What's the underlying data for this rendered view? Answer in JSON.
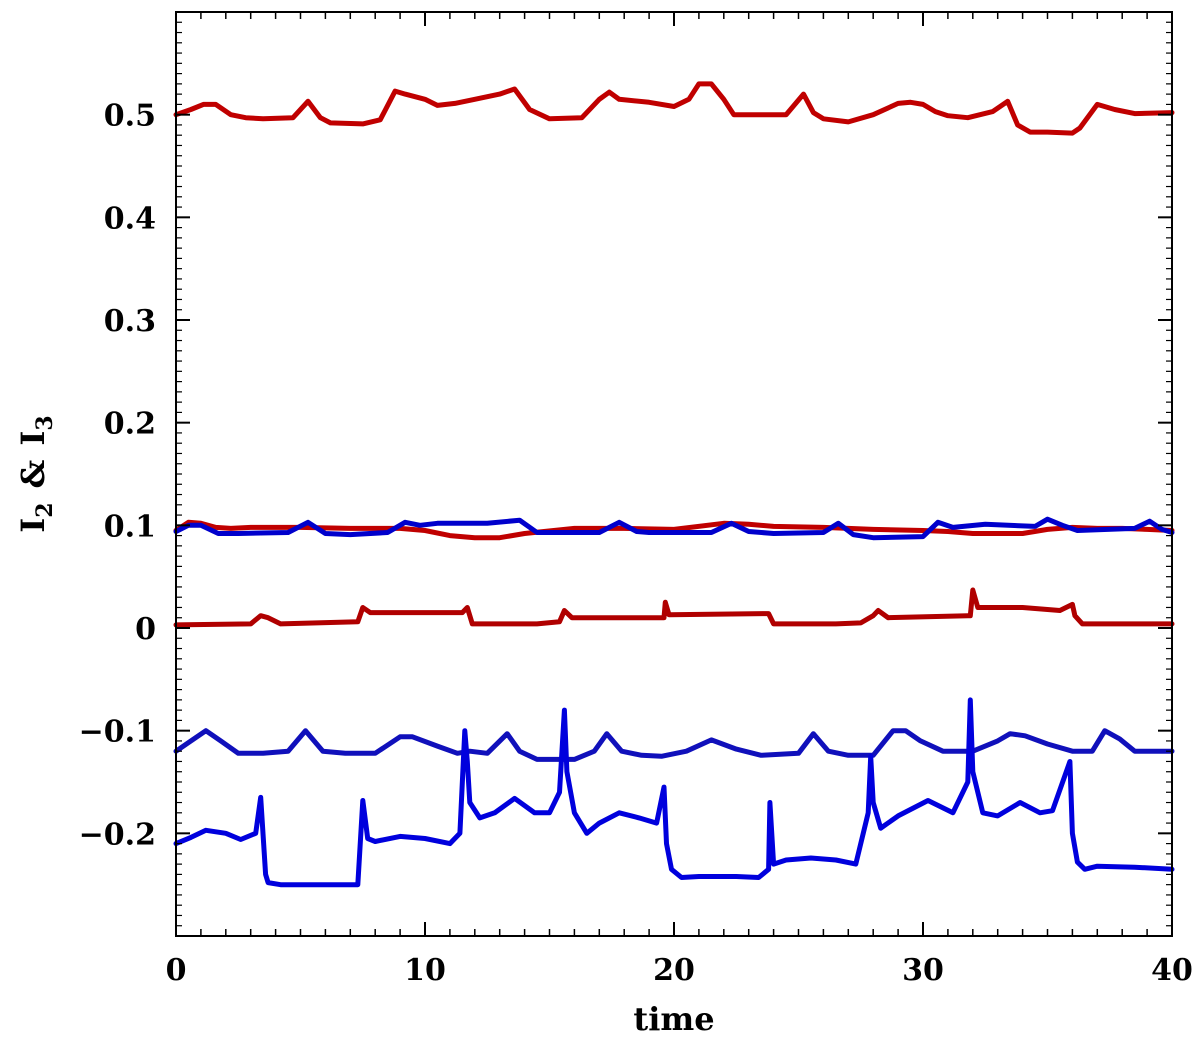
{
  "chart_data": {
    "type": "line",
    "title": "",
    "xlabel": "time",
    "ylabel_main": "I",
    "ylabel_sub1": "2",
    "ylabel_amp": "&",
    "ylabel_sub2": "3",
    "xlim": [
      0,
      40
    ],
    "ylim": [
      -0.3,
      0.6
    ],
    "xticks": [
      0,
      10,
      20,
      30,
      40
    ],
    "xtick_labels": [
      "0",
      "10",
      "20",
      "30",
      "40"
    ],
    "yticks": [
      -0.2,
      -0.1,
      0,
      0.1,
      0.2,
      0.3,
      0.4,
      0.5
    ],
    "ytick_labels": [
      "−0.2",
      "−0.1",
      "0",
      "0.1",
      "0.2",
      "0.3",
      "0.4",
      "0.5"
    ],
    "grid": false,
    "series": [
      {
        "name": "red-upper-0.5",
        "color": "#c00000",
        "x": [
          0,
          0.6,
          1.1,
          1.6,
          2.2,
          2.8,
          3.5,
          4.7,
          5.3,
          5.8,
          6.2,
          7.5,
          8.2,
          8.8,
          9.2,
          10.0,
          10.5,
          11.2,
          12.0,
          13.0,
          13.6,
          14.2,
          15.0,
          16.3,
          17.0,
          17.4,
          17.8,
          19.0,
          20.0,
          20.6,
          21.0,
          21.5,
          22.0,
          22.4,
          23.0,
          24.5,
          25.2,
          25.6,
          26.0,
          27.0,
          28.0,
          29.0,
          29.5,
          30.0,
          30.5,
          31.0,
          31.8,
          32.8,
          33.4,
          33.8,
          34.3,
          35.0,
          36.0,
          36.3,
          37.0,
          37.7,
          38.5,
          40.0
        ],
        "y": [
          0.5,
          0.505,
          0.51,
          0.51,
          0.5,
          0.497,
          0.496,
          0.497,
          0.513,
          0.497,
          0.492,
          0.491,
          0.495,
          0.523,
          0.52,
          0.515,
          0.509,
          0.511,
          0.515,
          0.52,
          0.525,
          0.505,
          0.496,
          0.497,
          0.515,
          0.522,
          0.515,
          0.512,
          0.508,
          0.515,
          0.53,
          0.53,
          0.515,
          0.5,
          0.5,
          0.5,
          0.52,
          0.502,
          0.496,
          0.493,
          0.5,
          0.511,
          0.512,
          0.51,
          0.503,
          0.499,
          0.497,
          0.503,
          0.513,
          0.49,
          0.483,
          0.483,
          0.482,
          0.487,
          0.51,
          0.505,
          0.501,
          0.502
        ]
      },
      {
        "name": "red-near-0.1",
        "color": "#c00000",
        "x": [
          0,
          0.5,
          1.0,
          1.6,
          2.2,
          3.0,
          5.0,
          7.0,
          9.0,
          10.0,
          11.0,
          12.0,
          13.0,
          14.0,
          16.0,
          18.0,
          20.0,
          22.0,
          23.0,
          24.0,
          26.0,
          28.0,
          30.0,
          31.0,
          32.0,
          34.0,
          35.0,
          36.0,
          37.0,
          38.0,
          39.0,
          40.0
        ],
        "y": [
          0.095,
          0.103,
          0.102,
          0.098,
          0.097,
          0.098,
          0.098,
          0.097,
          0.097,
          0.095,
          0.09,
          0.088,
          0.088,
          0.092,
          0.097,
          0.097,
          0.096,
          0.102,
          0.101,
          0.099,
          0.098,
          0.096,
          0.095,
          0.094,
          0.092,
          0.092,
          0.096,
          0.098,
          0.097,
          0.097,
          0.096,
          0.095
        ]
      },
      {
        "name": "blue-near-0.1",
        "color": "#0000cc",
        "x": [
          0,
          0.5,
          1.0,
          1.7,
          2.5,
          4.5,
          5.3,
          6.0,
          7.0,
          8.5,
          9.2,
          9.8,
          10.5,
          12.5,
          13.8,
          14.5,
          15.5,
          17.0,
          17.8,
          18.5,
          19.0,
          21.5,
          22.3,
          23.0,
          24.0,
          26.0,
          26.6,
          27.2,
          28.0,
          30.0,
          30.6,
          31.2,
          32.5,
          34.5,
          35.0,
          35.6,
          36.2,
          38.5,
          39.1,
          39.6,
          40.0
        ],
        "y": [
          0.094,
          0.1,
          0.1,
          0.092,
          0.092,
          0.093,
          0.103,
          0.092,
          0.091,
          0.093,
          0.103,
          0.1,
          0.102,
          0.102,
          0.105,
          0.093,
          0.093,
          0.093,
          0.103,
          0.094,
          0.093,
          0.093,
          0.102,
          0.094,
          0.092,
          0.093,
          0.102,
          0.091,
          0.088,
          0.089,
          0.103,
          0.098,
          0.101,
          0.099,
          0.106,
          0.1,
          0.095,
          0.097,
          0.104,
          0.096,
          0.093
        ]
      },
      {
        "name": "dark-red-near-0",
        "color": "#b00000",
        "x": [
          0,
          3.0,
          3.4,
          3.7,
          4.2,
          7.3,
          7.5,
          7.8,
          11.5,
          11.7,
          11.9,
          14.5,
          15.4,
          15.6,
          15.9,
          19.6,
          19.65,
          19.8,
          23.8,
          24.0,
          26.5,
          27.5,
          28.0,
          28.2,
          28.6,
          31.8,
          31.9,
          32.0,
          32.2,
          34.0,
          35.5,
          36.0,
          36.1,
          36.4,
          40.0
        ],
        "y": [
          0.003,
          0.004,
          0.012,
          0.01,
          0.004,
          0.006,
          0.02,
          0.015,
          0.015,
          0.02,
          0.004,
          0.004,
          0.006,
          0.017,
          0.01,
          0.01,
          0.025,
          0.013,
          0.014,
          0.004,
          0.004,
          0.005,
          0.012,
          0.017,
          0.01,
          0.012,
          0.012,
          0.037,
          0.02,
          0.02,
          0.017,
          0.023,
          0.012,
          0.004,
          0.004
        ]
      },
      {
        "name": "blue-near-minus-0.1",
        "color": "#1010bb",
        "x": [
          0,
          0.6,
          1.2,
          1.8,
          2.5,
          3.5,
          4.5,
          5.2,
          5.9,
          6.8,
          8.0,
          9.0,
          9.5,
          10.5,
          11.3,
          11.8,
          12.5,
          13.3,
          13.8,
          14.5,
          15.5,
          16.0,
          16.8,
          17.3,
          17.9,
          18.7,
          19.5,
          20.5,
          21.5,
          22.5,
          23.5,
          25.0,
          25.6,
          26.2,
          27.0,
          28.0,
          28.8,
          29.3,
          29.9,
          30.8,
          32.0,
          33.0,
          33.5,
          34.1,
          35.0,
          36.0,
          36.8,
          37.3,
          37.9,
          38.5,
          40.0
        ],
        "y": [
          -0.12,
          -0.11,
          -0.1,
          -0.11,
          -0.122,
          -0.122,
          -0.12,
          -0.1,
          -0.12,
          -0.122,
          -0.122,
          -0.106,
          -0.106,
          -0.115,
          -0.122,
          -0.12,
          -0.122,
          -0.103,
          -0.12,
          -0.128,
          -0.128,
          -0.128,
          -0.12,
          -0.103,
          -0.12,
          -0.124,
          -0.125,
          -0.12,
          -0.109,
          -0.118,
          -0.124,
          -0.122,
          -0.103,
          -0.12,
          -0.124,
          -0.124,
          -0.1,
          -0.1,
          -0.11,
          -0.12,
          -0.12,
          -0.11,
          -0.103,
          -0.105,
          -0.113,
          -0.12,
          -0.12,
          -0.1,
          -0.108,
          -0.12,
          -0.12
        ]
      },
      {
        "name": "blue-spiky-lower",
        "color": "#0000dd",
        "x": [
          0,
          0.6,
          1.2,
          2.0,
          2.6,
          3.2,
          3.4,
          3.6,
          3.7,
          4.2,
          6.0,
          7.3,
          7.5,
          7.7,
          8.0,
          9.0,
          10.0,
          11.0,
          11.4,
          11.6,
          11.7,
          11.8,
          12.2,
          12.8,
          13.6,
          14.4,
          15.0,
          15.4,
          15.6,
          15.7,
          16.0,
          16.5,
          17.0,
          17.8,
          18.6,
          19.3,
          19.6,
          19.7,
          19.9,
          20.3,
          21.0,
          22.5,
          23.4,
          23.8,
          23.85,
          24.0,
          24.5,
          25.5,
          26.5,
          27.3,
          27.8,
          27.9,
          28.0,
          28.3,
          29.0,
          30.2,
          31.2,
          31.8,
          31.9,
          32.0,
          32.4,
          33.0,
          33.9,
          34.7,
          35.2,
          35.9,
          36.0,
          36.2,
          36.5,
          37.0,
          38.5,
          40.0
        ],
        "y": [
          -0.21,
          -0.204,
          -0.197,
          -0.2,
          -0.206,
          -0.2,
          -0.165,
          -0.24,
          -0.248,
          -0.25,
          -0.25,
          -0.25,
          -0.168,
          -0.205,
          -0.208,
          -0.203,
          -0.205,
          -0.21,
          -0.2,
          -0.1,
          -0.13,
          -0.17,
          -0.185,
          -0.18,
          -0.166,
          -0.18,
          -0.18,
          -0.16,
          -0.08,
          -0.14,
          -0.18,
          -0.2,
          -0.19,
          -0.18,
          -0.185,
          -0.19,
          -0.155,
          -0.21,
          -0.235,
          -0.243,
          -0.242,
          -0.242,
          -0.243,
          -0.235,
          -0.17,
          -0.23,
          -0.226,
          -0.224,
          -0.226,
          -0.23,
          -0.18,
          -0.125,
          -0.17,
          -0.195,
          -0.183,
          -0.168,
          -0.18,
          -0.15,
          -0.07,
          -0.14,
          -0.18,
          -0.183,
          -0.17,
          -0.18,
          -0.178,
          -0.13,
          -0.2,
          -0.228,
          -0.235,
          -0.232,
          -0.233,
          -0.235
        ]
      }
    ]
  }
}
